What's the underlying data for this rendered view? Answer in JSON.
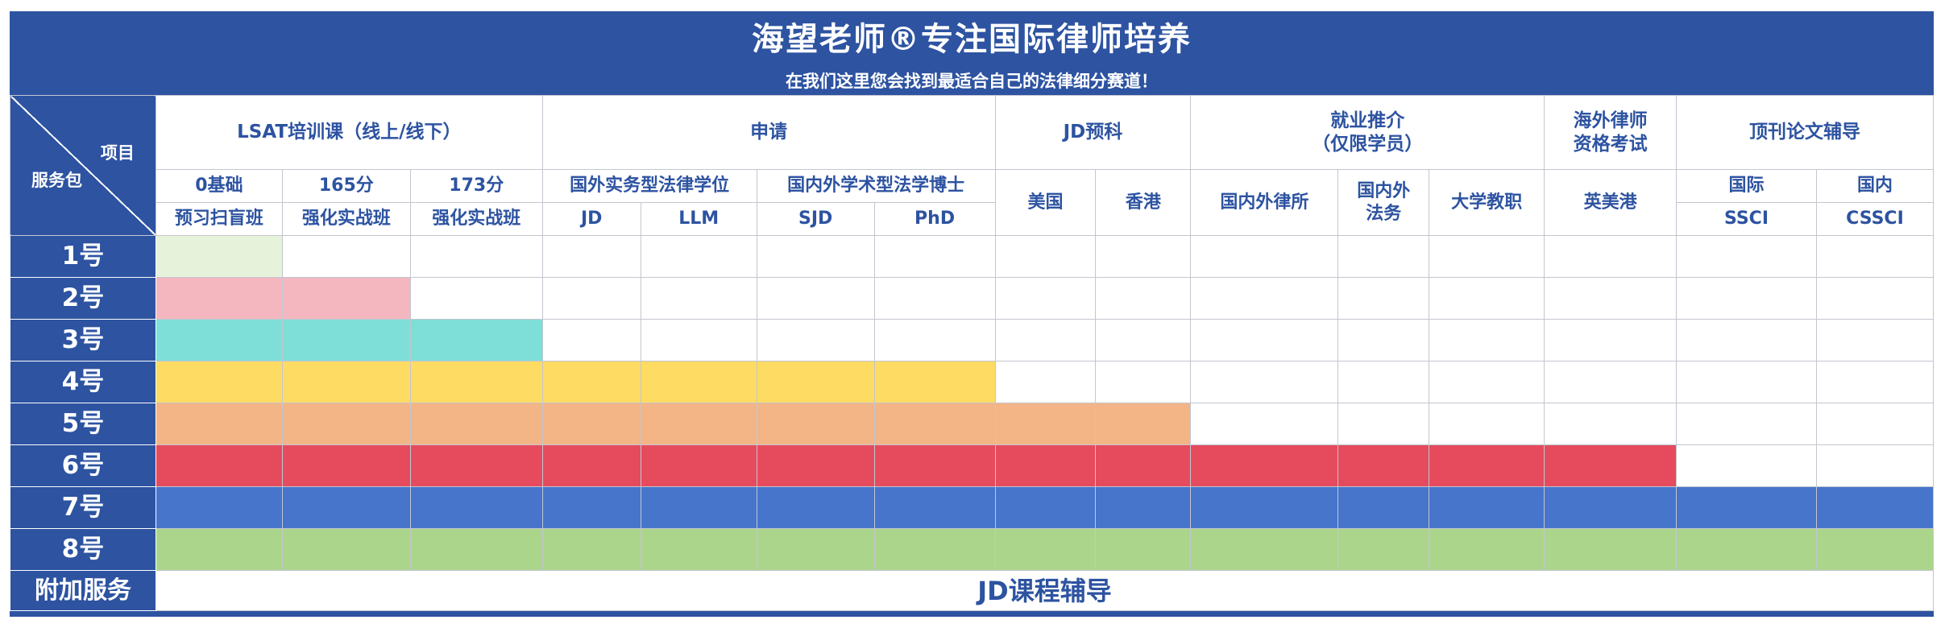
{
  "header": {
    "title": "海望老师®专注国际律师培养",
    "subtitle": "在我们这里您会找到最适合自己的法律细分赛道！"
  },
  "corner": {
    "top_label": "项目",
    "bottom_label": "服务包"
  },
  "groups": {
    "lsat": "LSAT培训课（线上/线下）",
    "apply": "申请",
    "jd_prep": "JD预科",
    "employment": [
      "就业推介",
      "（仅限学员）"
    ],
    "overseas_exam": [
      "海外律师",
      "资格考试"
    ],
    "journal": "顶刊论文辅导"
  },
  "subgroups": {
    "zero": "0基础",
    "s165": "165分",
    "s173": "173分",
    "practice_degree": "国外实务型法律学位",
    "academic_doctor": "国内外学术型法学博士",
    "us": "美国",
    "hk": "香港",
    "law_firm": "国内外律所",
    "legal_affairs": [
      "国内外",
      "法务"
    ],
    "professor": "大学教职",
    "uk_us_hk": "英美港",
    "intl": "国际",
    "domestic": "国内"
  },
  "leaves": {
    "foundation": "预习扫盲班",
    "intensive1": "强化实战班",
    "intensive2": "强化实战班",
    "jd": "JD",
    "llm": "LLM",
    "sjd": "SJD",
    "phd": "PhD",
    "ssci": "SSCI",
    "cssci": "CSSCI"
  },
  "packages": [
    {
      "label": "1号",
      "filled": 1,
      "color": "#e6f2da"
    },
    {
      "label": "2号",
      "filled": 2,
      "color": "#f4b7c0"
    },
    {
      "label": "3号",
      "filled": 3,
      "color": "#7ddfd8"
    },
    {
      "label": "4号",
      "filled": 7,
      "color": "#fedb62"
    },
    {
      "label": "5号",
      "filled": 9,
      "color": "#f3b486"
    },
    {
      "label": "6号",
      "filled": 13,
      "color": "#e54b5d"
    },
    {
      "label": "7号",
      "filled": 15,
      "color": "#4675cb"
    },
    {
      "label": "8号",
      "filled": 15,
      "color": "#acd58c"
    }
  ],
  "extra": {
    "label": "附加服务",
    "value": "JD课程辅导"
  },
  "colors": {
    "brand": "#2d53a1",
    "grid_line": "#c3c6cf"
  }
}
